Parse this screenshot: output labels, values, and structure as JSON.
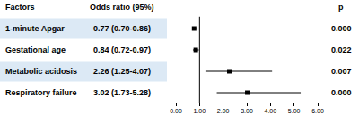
{
  "chart_data": {
    "type": "scatter",
    "columns": [
      "Factors",
      "Odds ratio (95%)",
      "p"
    ],
    "categories": [
      "1-minute Apgar",
      "Gestational age",
      "Metabolic acidosis",
      "Respiratory failure"
    ],
    "values": [
      0.77,
      0.84,
      2.26,
      3.02
    ],
    "lower": [
      0.7,
      0.72,
      1.25,
      1.73
    ],
    "upper": [
      0.86,
      0.97,
      4.07,
      5.28
    ],
    "value_labels": [
      "0.77 (0.70-0.86)",
      "0.84 (0.72-0.97)",
      "2.26 (1.25-4.07)",
      "3.02 (1.73-5.28)"
    ],
    "p_values": [
      "0.000",
      "0.022",
      "0.007",
      "0.000"
    ],
    "reference_line": 1,
    "xlim": [
      0,
      6
    ],
    "xticks": [
      {
        "value": 0,
        "label": "0.00"
      },
      {
        "value": 1,
        "label": "1.00"
      },
      {
        "value": 2,
        "label": "2.00"
      },
      {
        "value": 3,
        "label": "3.00"
      },
      {
        "value": 4,
        "label": "4.00"
      },
      {
        "value": 5,
        "label": "5.00"
      },
      {
        "value": 6,
        "label": "6.00"
      }
    ],
    "color": "#000000",
    "marker": "square",
    "grid": false
  }
}
